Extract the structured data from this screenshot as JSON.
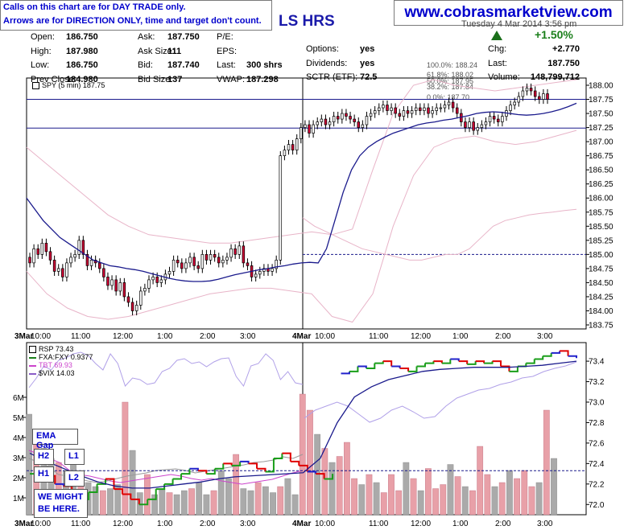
{
  "notice": {
    "line1": "Calls on this chart are for DAY TRADE only.",
    "line2": "Arrows are for DIRECTION ONLY, time and target don't count."
  },
  "website": "www.cobrasmarketview.com",
  "ticker_fragment": "LS HRS",
  "date_fragment": "Tuesday 4 Mar 2014 3:56 pm",
  "quote": {
    "col1": [
      {
        "label": "Open:",
        "value": "186.750"
      },
      {
        "label": "High:",
        "value": "187.980"
      },
      {
        "label": "Low:",
        "value": "186.750"
      },
      {
        "label": "Prev Close:",
        "value": "184.980"
      }
    ],
    "col2": [
      {
        "label": "Ask:",
        "value": "187.750"
      },
      {
        "label": "Ask Size:",
        "value": "111"
      },
      {
        "label": "Bid:",
        "value": "187.740"
      },
      {
        "label": "Bid Size:",
        "value": "137"
      }
    ],
    "col3": [
      {
        "label": "P/E:",
        "value": ""
      },
      {
        "label": "EPS:",
        "value": ""
      },
      {
        "label": "Last:",
        "value": "300 shrs"
      },
      {
        "label": "VWAP:",
        "value": "187.298"
      }
    ],
    "col4": [
      {
        "label": "Options:",
        "value": "yes"
      },
      {
        "label": "Dividends:",
        "value": "yes"
      },
      {
        "label": "SCTR (ETF):",
        "value": "72.5"
      }
    ],
    "col5": [
      {
        "label": "Chg:",
        "value": "+2.770"
      },
      {
        "label": "Last:",
        "value": "187.750"
      },
      {
        "label": "Volume:",
        "value": "148,799,712"
      }
    ],
    "change_pct": "+1.50%",
    "change_direction": "up"
  },
  "colors": {
    "up_candle": "#ffffff",
    "down_candle": "#cc0033",
    "ema": "#1a1a8c",
    "bollinger": "#e8b4c8",
    "rsp_up": "#1a9e1a",
    "rsp_down": "#e00000",
    "rsp_flat": "#2222cc",
    "fxa": "#999999",
    "tbt": "#cc44cc",
    "vix": "#b0a0e8",
    "volume_up": "#aaaaaa",
    "volume_down": "#e8a0a8",
    "annotation": "#0000cc"
  },
  "chart_data": [
    {
      "type": "candlestick",
      "title": "SPY (5 min) 187.75",
      "ylim": [
        183.75,
        188.0
      ],
      "y_ticks": [
        "188.00",
        "187.75",
        "187.50",
        "187.25",
        "187.00",
        "186.75",
        "186.50",
        "186.25",
        "186.00",
        "185.75",
        "185.50",
        "185.25",
        "185.00",
        "184.75",
        "184.50",
        "184.25",
        "184.00",
        "183.75"
      ],
      "x_ticks": [
        "3Mar",
        "10:00",
        "11:00",
        "12:00",
        "1:00",
        "2:00",
        "3:00",
        "4Mar",
        "10:00",
        "11:00",
        "12:00",
        "1:00",
        "2:00",
        "3:00"
      ],
      "grid": false,
      "horizontal_lines": [
        187.75,
        187.24
      ],
      "dashed_line": 185.0,
      "fib_levels": [
        {
          "label": "100.0%: 188.24"
        },
        {
          "label": "61.8%: 188.02"
        },
        {
          "label": "50.0%: 187.95"
        },
        {
          "label": "38.2%: 187.84"
        },
        {
          "label": "0.0%: 187.70"
        }
      ],
      "close": [
        184.85,
        185.1,
        185.0,
        185.2,
        185.05,
        184.9,
        184.7,
        184.75,
        184.6,
        184.85,
        184.95,
        185.0,
        185.25,
        185.0,
        184.8,
        184.9,
        184.85,
        184.75,
        184.6,
        184.45,
        184.55,
        184.35,
        184.5,
        184.25,
        184.15,
        184.0,
        184.1,
        184.35,
        184.4,
        184.55,
        184.6,
        184.5,
        184.55,
        184.65,
        184.7,
        184.9,
        184.85,
        184.75,
        184.85,
        184.95,
        184.8,
        184.75,
        185.0,
        184.9,
        185.0,
        184.95,
        184.85,
        184.9,
        184.95,
        185.1,
        185.0,
        185.15,
        184.85,
        184.8,
        184.6,
        184.65,
        184.7,
        184.75,
        184.7,
        184.75,
        184.9,
        186.75,
        186.85,
        186.95,
        186.85,
        187.05,
        187.25,
        187.3,
        187.15,
        187.3,
        187.35,
        187.4,
        187.3,
        187.35,
        187.45,
        187.4,
        187.5,
        187.45,
        187.4,
        187.35,
        187.25,
        187.3,
        187.45,
        187.5,
        187.55,
        187.6,
        187.65,
        187.55,
        187.6,
        187.5,
        187.45,
        187.55,
        187.5,
        187.55,
        187.6,
        187.55,
        187.6,
        187.5,
        187.55,
        187.6,
        187.6,
        187.65,
        187.7,
        187.6,
        187.5,
        187.35,
        187.25,
        187.35,
        187.2,
        187.25,
        187.3,
        187.35,
        187.45,
        187.4,
        187.35,
        187.45,
        187.55,
        187.65,
        187.7,
        187.8,
        187.9,
        187.95,
        187.9,
        187.8,
        187.75,
        187.85,
        187.75
      ],
      "ema": [
        186.0,
        185.8,
        185.6,
        185.45,
        185.3,
        185.2,
        185.1,
        185.0,
        184.9,
        184.85,
        184.8,
        184.78,
        184.75,
        184.73,
        184.7,
        184.66,
        184.62,
        184.58,
        184.55,
        184.53,
        184.52,
        184.52,
        184.53,
        184.56,
        184.6,
        184.64,
        184.67,
        184.7,
        184.73,
        184.75,
        184.78,
        184.8,
        184.83,
        184.85,
        184.86,
        184.85,
        185.1,
        185.6,
        186.1,
        186.5,
        186.75,
        186.9,
        187.0,
        187.08,
        187.15,
        187.2,
        187.25,
        187.3,
        187.33,
        187.35,
        187.38,
        187.4,
        187.43,
        187.46,
        187.5,
        187.52,
        187.53,
        187.52,
        187.5,
        187.48,
        187.47,
        187.48,
        187.5,
        187.53,
        187.57,
        187.62,
        187.68
      ],
      "vwap": [
        185.65,
        185.5,
        185.4,
        185.3,
        185.2,
        185.1,
        185.05,
        185.0,
        184.95,
        184.9,
        184.9,
        184.95,
        185.0,
        185.0,
        185.1,
        185.3,
        185.5,
        185.6,
        185.65,
        185.7,
        185.73,
        185.75,
        185.78,
        185.8
      ],
      "bollinger_upper": [
        186.9,
        186.6,
        186.3,
        186.0,
        185.7,
        185.5,
        185.35,
        185.3,
        185.25,
        185.2,
        185.2,
        185.25,
        185.3,
        185.35,
        185.4,
        185.35,
        185.45,
        186.5,
        187.5,
        188.0,
        188.1,
        188.0,
        187.95,
        187.9,
        187.95,
        188.0,
        188.05,
        188.1
      ],
      "bollinger_lower": [
        184.7,
        184.3,
        184.05,
        183.9,
        183.85,
        183.9,
        184.0,
        184.1,
        184.2,
        184.3,
        184.35,
        184.4,
        184.4,
        184.35,
        184.3,
        183.9,
        183.8,
        184.3,
        185.5,
        186.4,
        186.9,
        187.05,
        187.1,
        187.0,
        186.95,
        187.0,
        187.1,
        187.2
      ]
    },
    {
      "type": "line",
      "series": [
        {
          "name": "RSP 73.43"
        },
        {
          "name": "FXA:FXY 0.9377"
        },
        {
          "name": "TBT 69.93"
        },
        {
          "name": "$VIX 14.03"
        }
      ],
      "right_ticks": [
        "73.4",
        "73.2",
        "73.0",
        "72.8",
        "72.6",
        "72.4",
        "72.2",
        "72.0"
      ],
      "left_ticks": [
        "6M",
        "5M",
        "4M",
        "3M",
        "2M",
        "1M"
      ],
      "ylim": [
        71.9,
        73.55
      ],
      "dashed_line": 72.33,
      "x_ticks": [
        "3Mar",
        "10:00",
        "11:00",
        "12:00",
        "1:00",
        "2:00",
        "3:00",
        "4Mar",
        "10:00",
        "11:00",
        "12:00",
        "1:00",
        "2:00",
        "3:00"
      ],
      "rsp": [
        72.3,
        72.35,
        72.28,
        72.2,
        72.18,
        72.1,
        72.05,
        72.12,
        72.2,
        72.25,
        72.15,
        72.1,
        72.05,
        72.0,
        72.05,
        72.15,
        72.2,
        72.25,
        72.3,
        72.35,
        72.33,
        72.3,
        72.35,
        72.4,
        72.38,
        72.42,
        72.4,
        72.35,
        72.32,
        72.45,
        72.5,
        72.42,
        72.38,
        72.32,
        72.3,
        72.25,
        72.3,
        73.28,
        73.3,
        73.35,
        73.33,
        73.38,
        73.4,
        73.35,
        73.33,
        73.3,
        73.35,
        73.38,
        73.4,
        73.38,
        73.42,
        73.4,
        73.37,
        73.4,
        73.38,
        73.4,
        73.35,
        73.3,
        73.35,
        73.38,
        73.42,
        73.45,
        73.48,
        73.5,
        73.45,
        73.43
      ],
      "volume_millions": [
        5.0,
        4.2,
        3.3,
        2.8,
        2.6,
        2.2,
        2.6,
        2.0,
        1.6,
        1.4,
        1.2,
        1.3,
        1.5,
        5.6,
        3.2,
        1.1,
        2.0,
        1.0,
        1.3,
        1.1,
        1.0,
        1.2,
        1.3,
        1.6,
        1.0,
        1.2,
        2.2,
        1.8,
        3.0,
        1.3,
        1.2,
        1.6,
        1.4,
        1.1,
        1.4,
        1.8,
        1.0,
        6.0,
        5.2,
        4.0,
        3.3,
        2.6,
        2.9,
        3.6,
        1.8,
        1.5,
        2.0,
        1.6,
        1.1,
        2.0,
        1.2,
        2.6,
        1.8,
        1.2,
        2.3,
        1.3,
        1.5,
        2.5,
        1.9,
        1.4,
        1.2,
        3.4,
        2.0,
        1.4,
        1.6,
        2.2,
        1.8,
        2.2,
        1.4,
        1.6,
        5.2,
        2.8
      ]
    }
  ],
  "annotations": {
    "ema_gap": "EMA Gap",
    "h2": "H2",
    "h1": "H1",
    "l1": "L1",
    "l2": "L2",
    "might_line1": "WE MIGHT",
    "might_line2": "BE HERE."
  }
}
